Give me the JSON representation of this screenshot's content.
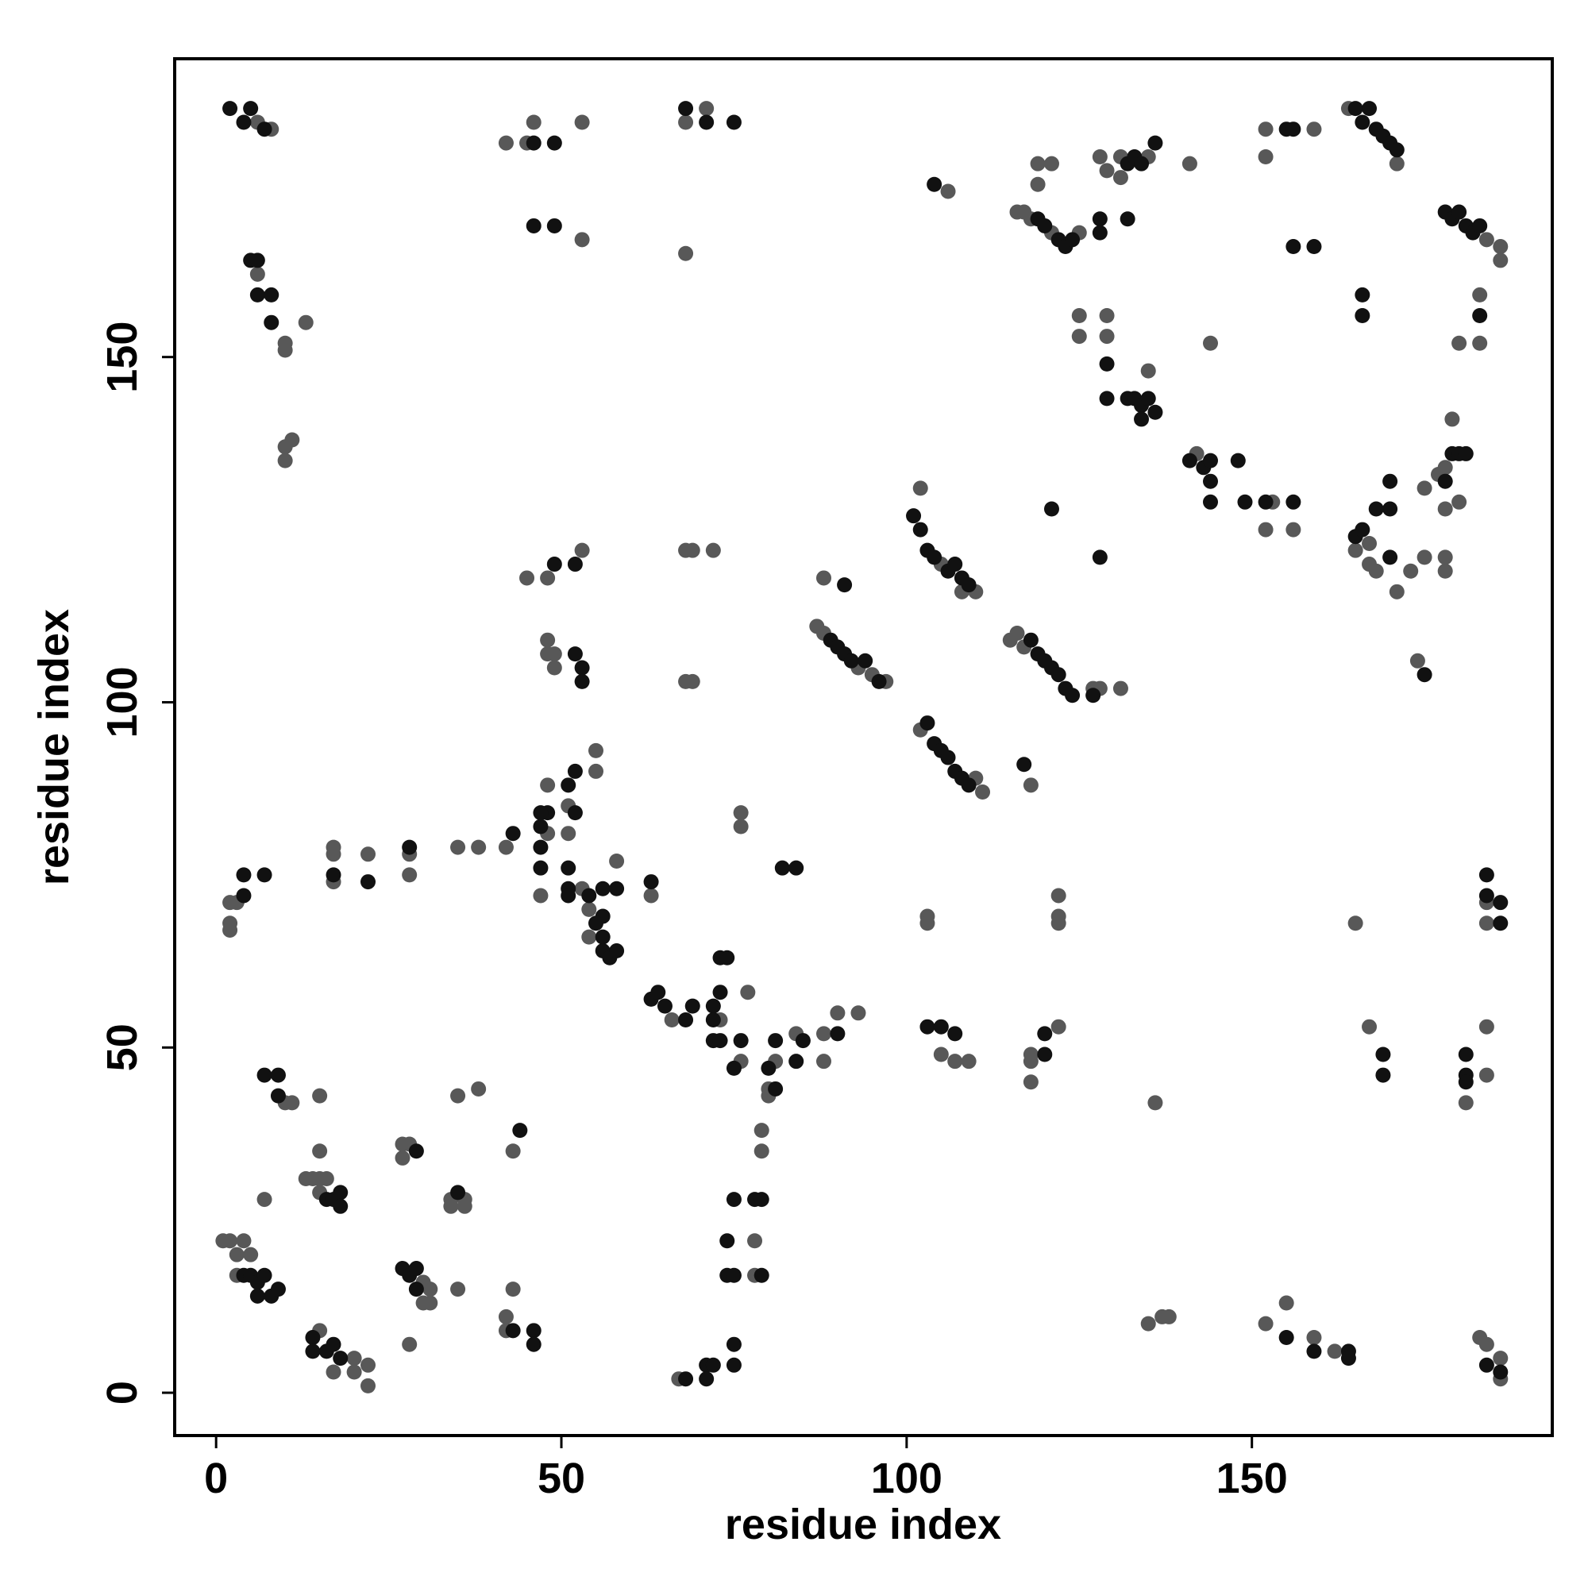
{
  "chart_data": {
    "type": "scatter",
    "x_label": "residue index",
    "y_label": "residue index",
    "xlim": [
      -6,
      193.5
    ],
    "ylim": [
      -6.2,
      193.2
    ],
    "xticks": [
      0,
      50,
      100,
      150
    ],
    "yticks": [
      0,
      50,
      100,
      150
    ],
    "grid": false,
    "series": [
      {
        "color": "#585858",
        "x": [
          6,
          8,
          68,
          71,
          42,
          45,
          46,
          53,
          53,
          68,
          106,
          6,
          10,
          10,
          13,
          10,
          11,
          10,
          119,
          121,
          119,
          116,
          117,
          118,
          121,
          125,
          128,
          129,
          131,
          135,
          141,
          131,
          152,
          152,
          159,
          164,
          171,
          184,
          186,
          186,
          183,
          183,
          180,
          144,
          125,
          129,
          125,
          129,
          135,
          142,
          152,
          156,
          153,
          179,
          175,
          177,
          178,
          178,
          180,
          165,
          167,
          167,
          168,
          171,
          173,
          175,
          178,
          178,
          174,
          102,
          105,
          110,
          108,
          87,
          88,
          93,
          95,
          97,
          88,
          115,
          116,
          117,
          128,
          131,
          127,
          102,
          110,
          111,
          118,
          45,
          48,
          53,
          48,
          48,
          49,
          49,
          68,
          69,
          72,
          68,
          69,
          55,
          55,
          48,
          51,
          42,
          48,
          51,
          47,
          53,
          58,
          54,
          54,
          63,
          38,
          35,
          28,
          28,
          22,
          17,
          17,
          17,
          2,
          2,
          2,
          3,
          76,
          76,
          122,
          122,
          122,
          103,
          103,
          165,
          184,
          184,
          66,
          73,
          76,
          77,
          80,
          80,
          81,
          84,
          88,
          88,
          90,
          93,
          105,
          107,
          109,
          118,
          118,
          118,
          122,
          167,
          181,
          184,
          184,
          136,
          10,
          11,
          15,
          35,
          38,
          43,
          15,
          13,
          14,
          15,
          16,
          15,
          7,
          27,
          28,
          27,
          36,
          34,
          34,
          36,
          1,
          2,
          4,
          3,
          5,
          3,
          30,
          31,
          30,
          31,
          35,
          43,
          15,
          17,
          20,
          20,
          22,
          22,
          28,
          42,
          42,
          79,
          79,
          78,
          78,
          67,
          135,
          137,
          138,
          152,
          155,
          159,
          162,
          183,
          184,
          186,
          186
        ],
        "values": [
          184,
          183,
          184,
          186,
          181,
          181,
          184,
          184,
          167,
          165,
          174,
          162,
          152,
          151,
          155,
          137,
          138,
          135,
          178,
          178,
          175,
          171,
          171,
          170,
          168,
          168,
          179,
          177,
          176,
          179,
          178,
          179,
          183,
          179,
          183,
          186,
          178,
          167,
          166,
          164,
          159,
          152,
          152,
          152,
          156,
          156,
          153,
          153,
          148,
          136,
          125,
          125,
          129,
          141,
          131,
          133,
          134,
          128,
          129,
          122,
          123,
          120,
          119,
          116,
          119,
          121,
          121,
          119,
          106,
          131,
          120,
          116,
          116,
          111,
          110,
          105,
          104,
          103,
          118,
          109,
          110,
          108,
          102,
          102,
          102,
          96,
          89,
          87,
          88,
          118,
          118,
          122,
          109,
          107,
          107,
          105,
          122,
          122,
          122,
          103,
          103,
          93,
          90,
          88,
          85,
          79,
          81,
          81,
          72,
          73,
          77,
          70,
          66,
          72,
          79,
          79,
          78,
          75,
          78,
          79,
          78,
          74,
          68,
          67,
          71,
          71,
          84,
          82,
          72,
          69,
          68,
          69,
          68,
          68,
          71,
          68,
          54,
          54,
          48,
          58,
          44,
          43,
          48,
          52,
          52,
          48,
          55,
          55,
          49,
          48,
          48,
          49,
          48,
          45,
          53,
          53,
          42,
          53,
          46,
          42,
          42,
          42,
          43,
          43,
          44,
          35,
          35,
          31,
          31,
          31,
          31,
          29,
          28,
          36,
          36,
          34,
          28,
          28,
          27,
          27,
          22,
          22,
          22,
          20,
          20,
          17,
          16,
          15,
          13,
          13,
          15,
          15,
          9,
          3,
          5,
          3,
          4,
          1,
          7,
          11,
          9,
          38,
          35,
          22,
          17,
          2,
          10,
          11,
          11,
          10,
          13,
          8,
          6,
          8,
          7,
          5,
          2
        ]
      },
      {
        "color": "#111111",
        "x": [
          2,
          4,
          5,
          7,
          68,
          71,
          75,
          46,
          49,
          46,
          49,
          104,
          6,
          8,
          8,
          5,
          6,
          119,
          120,
          122,
          123,
          124,
          128,
          132,
          128,
          132,
          133,
          134,
          136,
          155,
          156,
          165,
          166,
          167,
          168,
          169,
          170,
          171,
          178,
          179,
          180,
          181,
          182,
          183,
          156,
          159,
          166,
          166,
          183,
          129,
          129,
          132,
          133,
          134,
          135,
          134,
          136,
          141,
          143,
          144,
          144,
          144,
          148,
          149,
          152,
          156,
          121,
          128,
          179,
          180,
          181,
          178,
          170,
          170,
          168,
          165,
          166,
          170,
          175,
          101,
          102,
          103,
          104,
          106,
          107,
          108,
          109,
          89,
          90,
          91,
          92,
          94,
          96,
          91,
          118,
          119,
          120,
          121,
          122,
          123,
          124,
          127,
          117,
          103,
          104,
          105,
          106,
          107,
          108,
          109,
          49,
          52,
          52,
          53,
          53,
          52,
          51,
          48,
          47,
          52,
          47,
          43,
          47,
          47,
          51,
          51,
          51,
          54,
          56,
          58,
          56,
          55,
          56,
          56,
          57,
          58,
          63,
          28,
          22,
          17,
          4,
          4,
          7,
          82,
          84,
          184,
          184,
          186,
          186,
          63,
          64,
          65,
          68,
          69,
          72,
          73,
          73,
          74,
          72,
          72,
          73,
          76,
          75,
          80,
          81,
          81,
          84,
          85,
          90,
          103,
          105,
          107,
          120,
          120,
          169,
          169,
          181,
          181,
          181,
          7,
          9,
          9,
          44,
          16,
          17,
          18,
          18,
          29,
          35,
          4,
          5,
          6,
          7,
          6,
          8,
          9,
          27,
          28,
          29,
          29,
          43,
          46,
          46,
          14,
          14,
          16,
          17,
          18,
          75,
          78,
          79,
          74,
          74,
          75,
          79,
          75,
          75,
          71,
          72,
          68,
          71,
          155,
          159,
          164,
          164,
          184,
          186
        ],
        "values": [
          186,
          184,
          186,
          183,
          186,
          184,
          184,
          181,
          181,
          169,
          169,
          175,
          159,
          159,
          155,
          164,
          164,
          170,
          169,
          167,
          166,
          167,
          170,
          170,
          168,
          178,
          179,
          178,
          181,
          183,
          183,
          186,
          184,
          186,
          183,
          182,
          181,
          180,
          171,
          170,
          171,
          169,
          168,
          169,
          166,
          166,
          159,
          156,
          156,
          149,
          144,
          144,
          144,
          143,
          144,
          141,
          142,
          135,
          134,
          135,
          132,
          129,
          135,
          129,
          129,
          129,
          128,
          121,
          136,
          136,
          136,
          132,
          132,
          128,
          128,
          124,
          125,
          121,
          104,
          127,
          125,
          122,
          121,
          119,
          120,
          118,
          117,
          109,
          108,
          107,
          106,
          106,
          103,
          117,
          109,
          107,
          106,
          105,
          104,
          102,
          101,
          101,
          91,
          97,
          94,
          93,
          92,
          90,
          89,
          88,
          120,
          120,
          107,
          105,
          103,
          90,
          88,
          84,
          84,
          84,
          82,
          81,
          79,
          76,
          76,
          73,
          72,
          72,
          73,
          73,
          69,
          68,
          66,
          64,
          63,
          64,
          74,
          79,
          74,
          75,
          72,
          75,
          75,
          76,
          76,
          75,
          72,
          71,
          68,
          57,
          58,
          56,
          54,
          56,
          56,
          58,
          63,
          63,
          54,
          51,
          51,
          51,
          47,
          47,
          51,
          44,
          48,
          51,
          52,
          53,
          53,
          52,
          49,
          52,
          49,
          46,
          49,
          46,
          45,
          46,
          46,
          43,
          38,
          28,
          28,
          29,
          27,
          35,
          29,
          17,
          17,
          16,
          17,
          14,
          14,
          15,
          18,
          17,
          18,
          15,
          9,
          9,
          7,
          8,
          6,
          6,
          7,
          5,
          28,
          28,
          28,
          22,
          17,
          17,
          17,
          7,
          4,
          4,
          4,
          2,
          2,
          8,
          6,
          6,
          5,
          4,
          3
        ]
      }
    ]
  }
}
